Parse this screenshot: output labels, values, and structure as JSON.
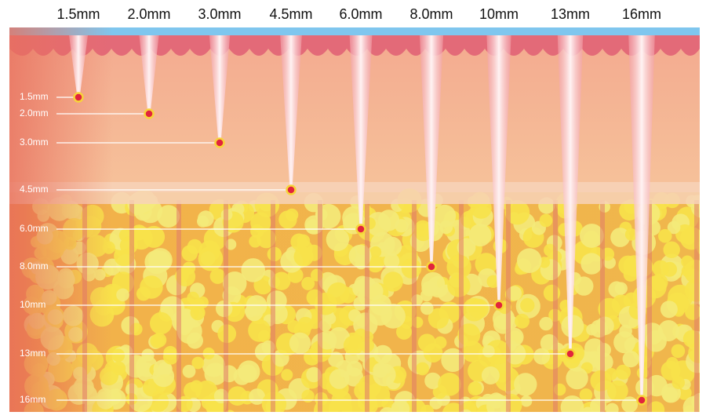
{
  "top_labels": [
    "1.5mm",
    "2.0mm",
    "3.0mm",
    "4.5mm",
    "6.0mm",
    "8.0mm",
    "10mm",
    "13mm",
    "16mm"
  ],
  "depth_labels": [
    "1.5mm",
    "2.0mm",
    "3.0mm",
    "4.5mm",
    "6.0mm",
    "8.0mm",
    "10mm",
    "13mm",
    "16mm"
  ]
}
